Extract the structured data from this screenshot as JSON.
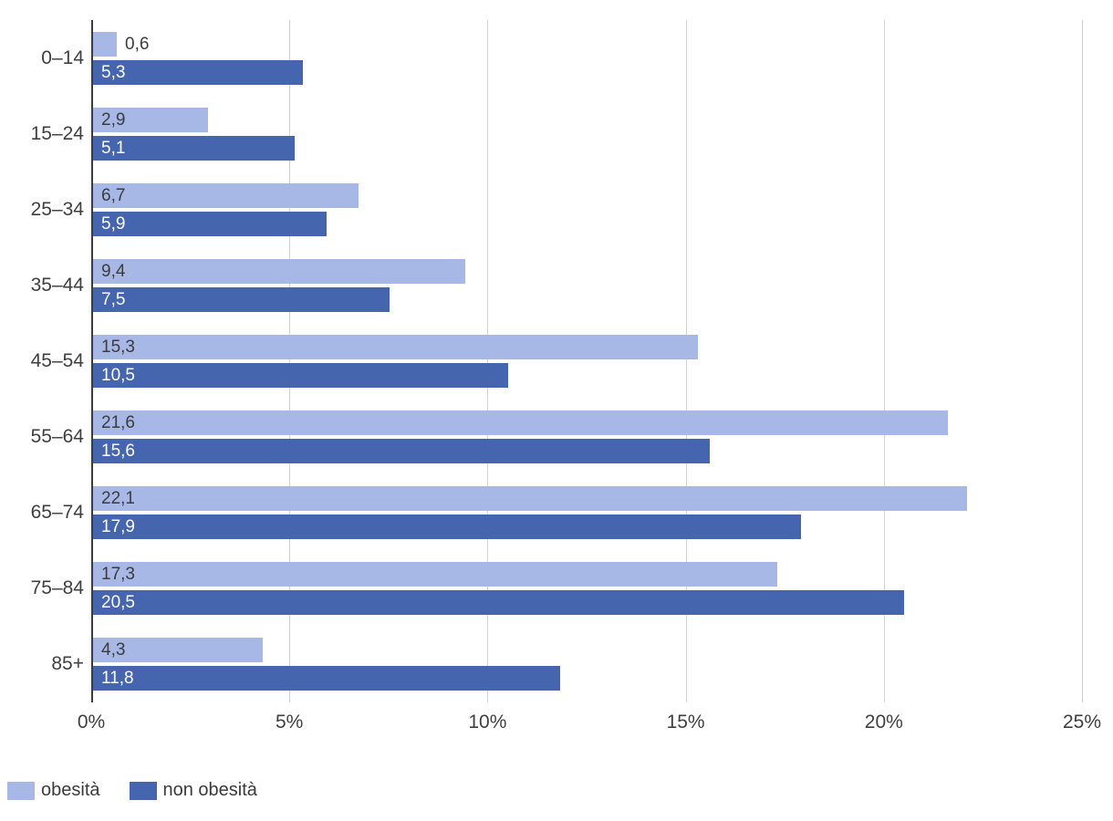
{
  "chart_data": {
    "type": "bar",
    "orientation": "horizontal",
    "title": "",
    "categories": [
      "0–14",
      "15–24",
      "25–34",
      "35–44",
      "45–54",
      "55–64",
      "65–74",
      "75–84",
      "85+"
    ],
    "series": [
      {
        "name": "obesità",
        "color": "#a7b8e6",
        "values": [
          0.6,
          2.9,
          6.7,
          9.4,
          15.3,
          21.6,
          22.1,
          17.3,
          4.3
        ],
        "labels": [
          "0,6",
          "2,9",
          "6,7",
          "9,4",
          "15,3",
          "21,6",
          "22,1",
          "17,3",
          "4,3"
        ],
        "label_color": "#3c3c3c"
      },
      {
        "name": "non obesità",
        "color": "#4565af",
        "values": [
          5.3,
          5.1,
          5.9,
          7.5,
          10.5,
          15.6,
          17.9,
          20.5,
          11.8
        ],
        "labels": [
          "5,3",
          "5,1",
          "5,9",
          "7,5",
          "10,5",
          "15,6",
          "17,9",
          "20,5",
          "11,8"
        ],
        "label_color": "#ffffff"
      }
    ],
    "x_axis": {
      "min": 0,
      "max": 25,
      "ticks": [
        "0%",
        "5%",
        "10%",
        "15%",
        "20%",
        "25%"
      ]
    },
    "grid": true,
    "grid_color": "#d2d2d2",
    "axis_line_color": "#3c3c3c",
    "legend": {
      "position": "bottom-left",
      "entries": [
        "obesità",
        "non obesità"
      ]
    }
  }
}
